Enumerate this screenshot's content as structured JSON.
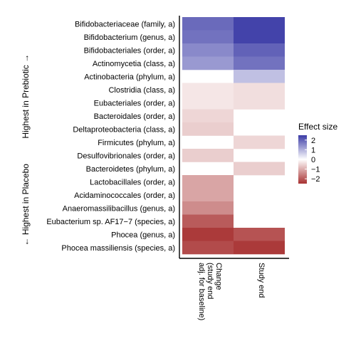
{
  "chart_data": {
    "type": "heatmap",
    "rows": [
      "Bifidobacteriaceae (family, a)",
      "Bifidobacterium (genus, a)",
      "Bifidobacteriales (order, a)",
      "Actinomycetia (class, a)",
      "Actinobacteria (phylum, a)",
      "Clostridia (class, a)",
      "Eubacteriales (order, a)",
      "Bacteroidales (order, a)",
      "Deltaproteobacteria (class, a)",
      "Firmicutes (phylum, a)",
      "Desulfovibrionales (order, a)",
      "Bacteroidetes (phylum, a)",
      "Lactobacillales (order, a)",
      "Acidaminococcales (order, a)",
      "Anaeromassilibacillus (genus, a)",
      "Eubacterium sp. AF17−7 (species, a)",
      "Phocea (genus, a)",
      "Phocea massiliensis (species, a)"
    ],
    "columns": [
      "Change (study end adj. for baseline)",
      "Study end"
    ],
    "values": [
      [
        1.9,
        2.4
      ],
      [
        1.8,
        2.4
      ],
      [
        1.5,
        2.0
      ],
      [
        1.3,
        1.8
      ],
      [
        null,
        0.8
      ],
      [
        -0.3,
        -0.4
      ],
      [
        -0.3,
        -0.4
      ],
      [
        -0.5,
        null
      ],
      [
        -0.6,
        null
      ],
      [
        null,
        -0.5
      ],
      [
        -0.6,
        null
      ],
      [
        null,
        -0.6
      ],
      [
        -1.1,
        null
      ],
      [
        -1.1,
        null
      ],
      [
        -1.4,
        null
      ],
      [
        -2.0,
        null
      ],
      [
        -2.4,
        -2.1
      ],
      [
        -2.2,
        -2.4
      ]
    ],
    "legend": {
      "title": "Effect size",
      "ticks": [
        2,
        1,
        0,
        -1,
        -2
      ],
      "tick_labels": [
        "2",
        "1",
        "0",
        "−1",
        "−2"
      ],
      "range": [
        -2.5,
        2.5
      ],
      "colors": {
        "high": "#3b3ba6",
        "mid": "#ffffff",
        "low": "#a83232"
      }
    },
    "side_labels": {
      "top": "Highest in Prebiotic →",
      "bottom": "← Highest in Placebo"
    }
  }
}
